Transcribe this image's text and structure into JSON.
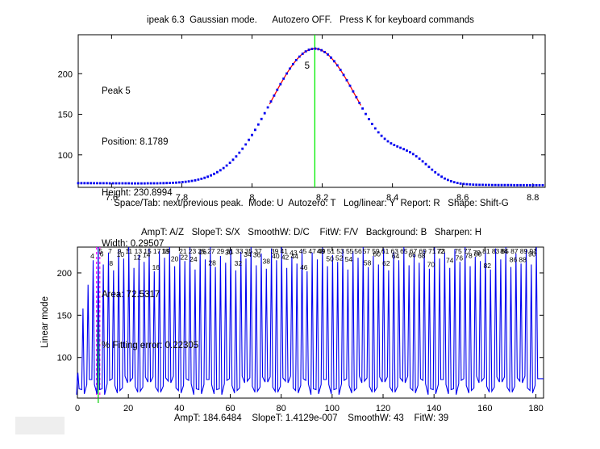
{
  "header": {
    "title": "ipeak 6.3  Gaussian mode.      Autozero OFF.   Press K for keyboard commands"
  },
  "decor": {
    "patch_color": "#eeeeee"
  },
  "chart_data": [
    {
      "type": "scatter",
      "role": "zoom-view-of-current-peak",
      "title": "",
      "xlabel": "Space/Tab: next/previous peak.  Mode: U  Autozero: T   Log/linear: Y  Report: R   Shape: Shift-G",
      "xlim": [
        7.505,
        8.835
      ],
      "ylim": [
        60,
        248
      ],
      "x_ticks": [
        7.6,
        7.8,
        8,
        8.2,
        8.4,
        8.6,
        8.8
      ],
      "x_tick_labels": [
        "7.6",
        "7.8",
        "8",
        "8.2",
        "8.4",
        "8.6",
        "8.8"
      ],
      "y_ticks": [
        100,
        150,
        200
      ],
      "grid": false,
      "marker_color": "#0000f0",
      "fit_color": "#ff0000",
      "fit_x_range": [
        8.05,
        8.31
      ],
      "sample_step": 0.009,
      "baseline": {
        "start": 65.2,
        "slope": -2.0
      },
      "components": [
        {
          "shape": "gaussian",
          "center": 8.1789,
          "height": 167,
          "fwhm": 0.29507
        },
        {
          "shape": "gaussian",
          "center": 8.455,
          "height": 24,
          "fwhm": 0.13
        }
      ],
      "cursor_line": {
        "x": 8.1789,
        "color": "#00ee00"
      },
      "peak_index_label": {
        "text": "5",
        "x": 8.157,
        "y": 206
      },
      "annotation_lines": [
        "Peak 5",
        "Position: 8.1789",
        "Height: 230.8994",
        "Width: 0.29507",
        "Area: 72.5317",
        "% Fitting error: 0.22305"
      ]
    },
    {
      "type": "comb",
      "role": "full-signal-overview",
      "title": "AmpT: A/Z   SlopeT: S/X   SmoothW: D/C    FitW: F/V   Background: B   Sharpen: H",
      "xlabel": "AmpT: 184.6484    SlopeT: 1.4129e-007    SmoothW: 43    FitW: 39",
      "ylabel": "Linear mode",
      "xlim": [
        0,
        183
      ],
      "ylim": [
        52,
        230.5
      ],
      "x_ticks": [
        0,
        20,
        40,
        60,
        80,
        100,
        120,
        140,
        160,
        180
      ],
      "x_tick_labels": [
        "0",
        "20",
        "40",
        "60",
        "80",
        "100",
        "120",
        "140",
        "160",
        "180"
      ],
      "y_ticks": [
        100,
        150,
        200
      ],
      "grid": false,
      "line_color": "#0000f0",
      "label_color": "#000000",
      "first_peak_position": 0.1789,
      "peak_spacing": 2.0,
      "peak_label_start": 1,
      "peak_heights": [
        82,
        158,
        186,
        215,
        231,
        210,
        224,
        203,
        228,
        217,
        232,
        206,
        221,
        213,
        229,
        202,
        226,
        218,
        233,
        208,
        222,
        214,
        230,
        204,
        227,
        216,
        231,
        207,
        220,
        212,
        228,
        203,
        225,
        217,
        232,
        209,
        223,
        205,
        229,
        215,
        231,
        206,
        219,
        211,
        227,
        202,
        224,
        216,
        230,
        208,
        221,
        213,
        228,
        204,
        226,
        218,
        232,
        207,
        220,
        210,
        229,
        203,
        225,
        215,
        231,
        209,
        222,
        212,
        227,
        205,
        230,
        217,
        224,
        206,
        228,
        213,
        232,
        208,
        219,
        214,
        226,
        204,
        229,
        216,
        231,
        207,
        223,
        211,
        228,
        210,
        233
      ],
      "window_lines": [
        {
          "x": 7.5,
          "color": "#ff00ff",
          "style": "dashed"
        },
        {
          "x": 8.1789,
          "color": "#00cc00",
          "style": "solid"
        },
        {
          "x": 8.8,
          "color": "#ff00ff",
          "style": "dashed"
        }
      ]
    }
  ]
}
